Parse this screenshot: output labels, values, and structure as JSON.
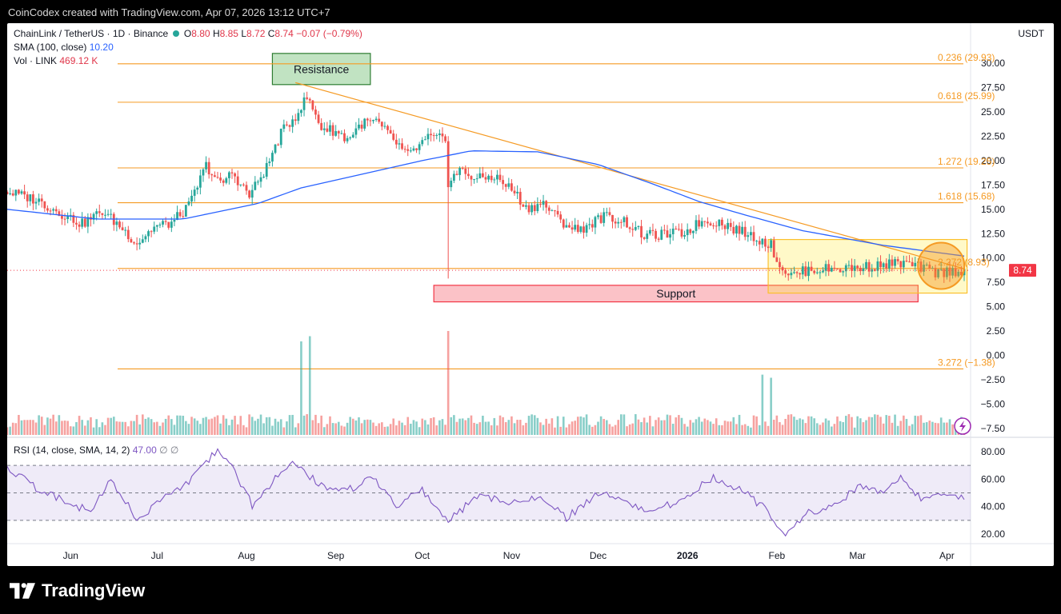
{
  "header": {
    "credit": "CoinCodex created with TradingView.com, Apr 07, 2026 13:12 UTC+7"
  },
  "legend": {
    "symbol": "ChainLink / TetherUS · 1D · Binance",
    "o_label": "O",
    "o": "8.80",
    "h_label": "H",
    "h": "8.85",
    "l_label": "L",
    "l": "8.72",
    "c_label": "C",
    "c": "8.74",
    "change": "−0.07 (−0.79%)",
    "sma_label": "SMA (100, close)",
    "sma_value": "10.20",
    "vol_label": "Vol · LINK",
    "vol_value": "469.12 K",
    "rsi_label": "RSI (14, close, SMA, 14, 2)",
    "rsi_value": "47.00"
  },
  "brand": {
    "name": "TradingView"
  },
  "colors": {
    "up": "#26a69a",
    "down": "#ef5350",
    "sma": "#2962ff",
    "fib": "#f59a23",
    "rsi": "#7e57c2",
    "price_tag": "#f23645"
  },
  "chart_data": {
    "type": "candlestick",
    "symbol": "ChainLink / TetherUS",
    "interval": "1D",
    "exchange": "Binance",
    "currency_label": "USDT",
    "last_price": "8.74",
    "y_ticks": [
      "30.00",
      "27.50",
      "25.00",
      "22.50",
      "20.00",
      "17.50",
      "15.00",
      "12.50",
      "10.00",
      "7.50",
      "5.00",
      "2.50",
      "0.00",
      "−2.50",
      "−5.00",
      "−7.50"
    ],
    "y_tick_values": [
      30,
      27.5,
      25,
      22.5,
      20,
      17.5,
      15,
      12.5,
      10,
      7.5,
      5,
      2.5,
      0,
      -2.5,
      -5,
      -7.5
    ],
    "x_ticks": [
      "Jun",
      "Jul",
      "Aug",
      "Sep",
      "Oct",
      "Nov",
      "Dec",
      "2026",
      "Feb",
      "Mar",
      "Apr"
    ],
    "x_tick_dates": [
      "2025-06-01",
      "2025-07-01",
      "2025-08-01",
      "2025-09-01",
      "2025-10-01",
      "2025-11-01",
      "2025-12-01",
      "2026-01-01",
      "2026-02-01",
      "2026-03-01",
      "2026-04-01"
    ],
    "date_range": [
      "2025-05-10",
      "2026-04-07"
    ],
    "price_path": [
      [
        "2025-05-10",
        16.8
      ],
      [
        "2025-05-20",
        16.0
      ],
      [
        "2025-05-28",
        14.7
      ],
      [
        "2025-06-05",
        13.5
      ],
      [
        "2025-06-12",
        14.8
      ],
      [
        "2025-06-18",
        13.3
      ],
      [
        "2025-06-24",
        11.5
      ],
      [
        "2025-06-30",
        13.2
      ],
      [
        "2025-07-06",
        13.6
      ],
      [
        "2025-07-12",
        15.3
      ],
      [
        "2025-07-18",
        19.5
      ],
      [
        "2025-07-23",
        17.5
      ],
      [
        "2025-07-27",
        18.8
      ],
      [
        "2025-08-02",
        16.4
      ],
      [
        "2025-08-08",
        19.3
      ],
      [
        "2025-08-13",
        22.8
      ],
      [
        "2025-08-18",
        24.6
      ],
      [
        "2025-08-22",
        26.5
      ],
      [
        "2025-08-27",
        23.4
      ],
      [
        "2025-09-01",
        23.0
      ],
      [
        "2025-09-05",
        22.2
      ],
      [
        "2025-09-10",
        23.8
      ],
      [
        "2025-09-15",
        24.0
      ],
      [
        "2025-09-22",
        21.8
      ],
      [
        "2025-09-26",
        20.5
      ],
      [
        "2025-10-03",
        22.3
      ],
      [
        "2025-10-09",
        22.2
      ],
      [
        "2025-10-10",
        17.8
      ],
      [
        "2025-10-14",
        19.0
      ],
      [
        "2025-10-20",
        18.1
      ],
      [
        "2025-10-26",
        18.4
      ],
      [
        "2025-11-02",
        16.8
      ],
      [
        "2025-11-06",
        15.1
      ],
      [
        "2025-11-12",
        15.6
      ],
      [
        "2025-11-18",
        13.8
      ],
      [
        "2025-11-24",
        12.8
      ],
      [
        "2025-12-03",
        14.3
      ],
      [
        "2025-12-10",
        13.8
      ],
      [
        "2025-12-17",
        12.3
      ],
      [
        "2025-12-24",
        12.4
      ],
      [
        "2025-12-31",
        12.6
      ],
      [
        "2026-01-06",
        13.8
      ],
      [
        "2026-01-12",
        13.7
      ],
      [
        "2026-01-18",
        12.9
      ],
      [
        "2026-01-24",
        12.2
      ],
      [
        "2026-01-30",
        11.3
      ],
      [
        "2026-02-02",
        9.2
      ],
      [
        "2026-02-06",
        8.2
      ],
      [
        "2026-02-12",
        8.8
      ],
      [
        "2026-02-20",
        8.9
      ],
      [
        "2026-03-01",
        9.0
      ],
      [
        "2026-03-10",
        9.3
      ],
      [
        "2026-03-16",
        9.5
      ],
      [
        "2026-03-22",
        9.1
      ],
      [
        "2026-03-28",
        8.5
      ],
      [
        "2026-04-07",
        8.74
      ]
    ],
    "sma_100_path": [
      [
        "2025-05-10",
        15.0
      ],
      [
        "2025-06-10",
        14.0
      ],
      [
        "2025-07-10",
        14.0
      ],
      [
        "2025-08-05",
        15.6
      ],
      [
        "2025-08-20",
        17.2
      ],
      [
        "2025-09-10",
        18.6
      ],
      [
        "2025-10-01",
        20.0
      ],
      [
        "2025-10-18",
        21.0
      ],
      [
        "2025-11-10",
        20.9
      ],
      [
        "2025-12-01",
        19.6
      ],
      [
        "2025-12-20",
        17.6
      ],
      [
        "2026-01-05",
        15.8
      ],
      [
        "2026-01-20",
        14.5
      ],
      [
        "2026-02-10",
        12.8
      ],
      [
        "2026-03-10",
        11.3
      ],
      [
        "2026-04-07",
        10.2
      ]
    ],
    "fib_levels": [
      {
        "label": "0.236 (29.93)",
        "value": 29.93
      },
      {
        "label": "0.618 (25.99)",
        "value": 25.99
      },
      {
        "label": "1.272 (19.25)",
        "value": 19.25
      },
      {
        "label": "1.618 (15.68)",
        "value": 15.68
      },
      {
        "label": "2.272 (8.93)",
        "value": 8.93
      },
      {
        "label": "3.272 (−1.38)",
        "value": -1.38
      }
    ],
    "trendline": [
      [
        "2025-08-18",
        28.0
      ],
      [
        "2026-04-07",
        8.9
      ]
    ],
    "annotations": [
      {
        "label": "Resistance",
        "range": [
          [
            "2025-08-10",
            31.0
          ],
          [
            "2025-09-13",
            27.8
          ]
        ]
      },
      {
        "label": "Support",
        "range": [
          [
            "2025-10-05",
            7.2
          ],
          [
            "2026-03-22",
            5.5
          ]
        ]
      },
      {
        "label": "",
        "range": [
          [
            "2026-01-29",
            11.9
          ],
          [
            "2026-04-08",
            6.4
          ]
        ]
      }
    ],
    "wick_spike": {
      "date": "2025-10-10",
      "low": 7.9
    },
    "volume": {
      "label": "Vol · LINK",
      "last": "469.12 K",
      "spikes": [
        [
          "2025-08-20",
          0.9
        ],
        [
          "2025-08-23",
          0.95
        ],
        [
          "2025-10-10",
          1.0
        ],
        [
          "2026-01-27",
          0.58
        ],
        [
          "2026-01-30",
          0.55
        ]
      ]
    },
    "rsi": {
      "label": "RSI (14, close, SMA, 14, 2)",
      "last": "47.00",
      "y_ticks": [
        "80.00",
        "60.00",
        "40.00",
        "20.00"
      ],
      "y_tick_values": [
        80,
        60,
        40,
        20
      ],
      "band": [
        30,
        70
      ],
      "mid": 50,
      "path": [
        [
          "2025-05-10",
          69
        ],
        [
          "2025-05-20",
          54
        ],
        [
          "2025-05-30",
          44
        ],
        [
          "2025-06-08",
          36
        ],
        [
          "2025-06-15",
          59
        ],
        [
          "2025-06-24",
          31
        ],
        [
          "2025-07-05",
          49
        ],
        [
          "2025-07-14",
          62
        ],
        [
          "2025-07-22",
          82
        ],
        [
          "2025-07-28",
          65
        ],
        [
          "2025-08-03",
          41
        ],
        [
          "2025-08-10",
          58
        ],
        [
          "2025-08-18",
          72
        ],
        [
          "2025-08-26",
          56
        ],
        [
          "2025-09-05",
          52
        ],
        [
          "2025-09-14",
          61
        ],
        [
          "2025-09-22",
          40
        ],
        [
          "2025-10-01",
          52
        ],
        [
          "2025-10-10",
          30
        ],
        [
          "2025-10-20",
          47
        ],
        [
          "2025-11-01",
          44
        ],
        [
          "2025-11-10",
          48
        ],
        [
          "2025-11-20",
          32
        ],
        [
          "2025-12-01",
          50
        ],
        [
          "2025-12-10",
          44
        ],
        [
          "2025-12-20",
          36
        ],
        [
          "2025-12-31",
          46
        ],
        [
          "2026-01-10",
          62
        ],
        [
          "2026-01-20",
          52
        ],
        [
          "2026-01-28",
          38
        ],
        [
          "2026-02-04",
          21
        ],
        [
          "2026-02-12",
          36
        ],
        [
          "2026-02-22",
          40
        ],
        [
          "2026-03-01",
          55
        ],
        [
          "2026-03-10",
          50
        ],
        [
          "2026-03-16",
          62
        ],
        [
          "2026-03-24",
          44
        ],
        [
          "2026-04-01",
          49
        ],
        [
          "2026-04-07",
          47
        ]
      ]
    }
  }
}
